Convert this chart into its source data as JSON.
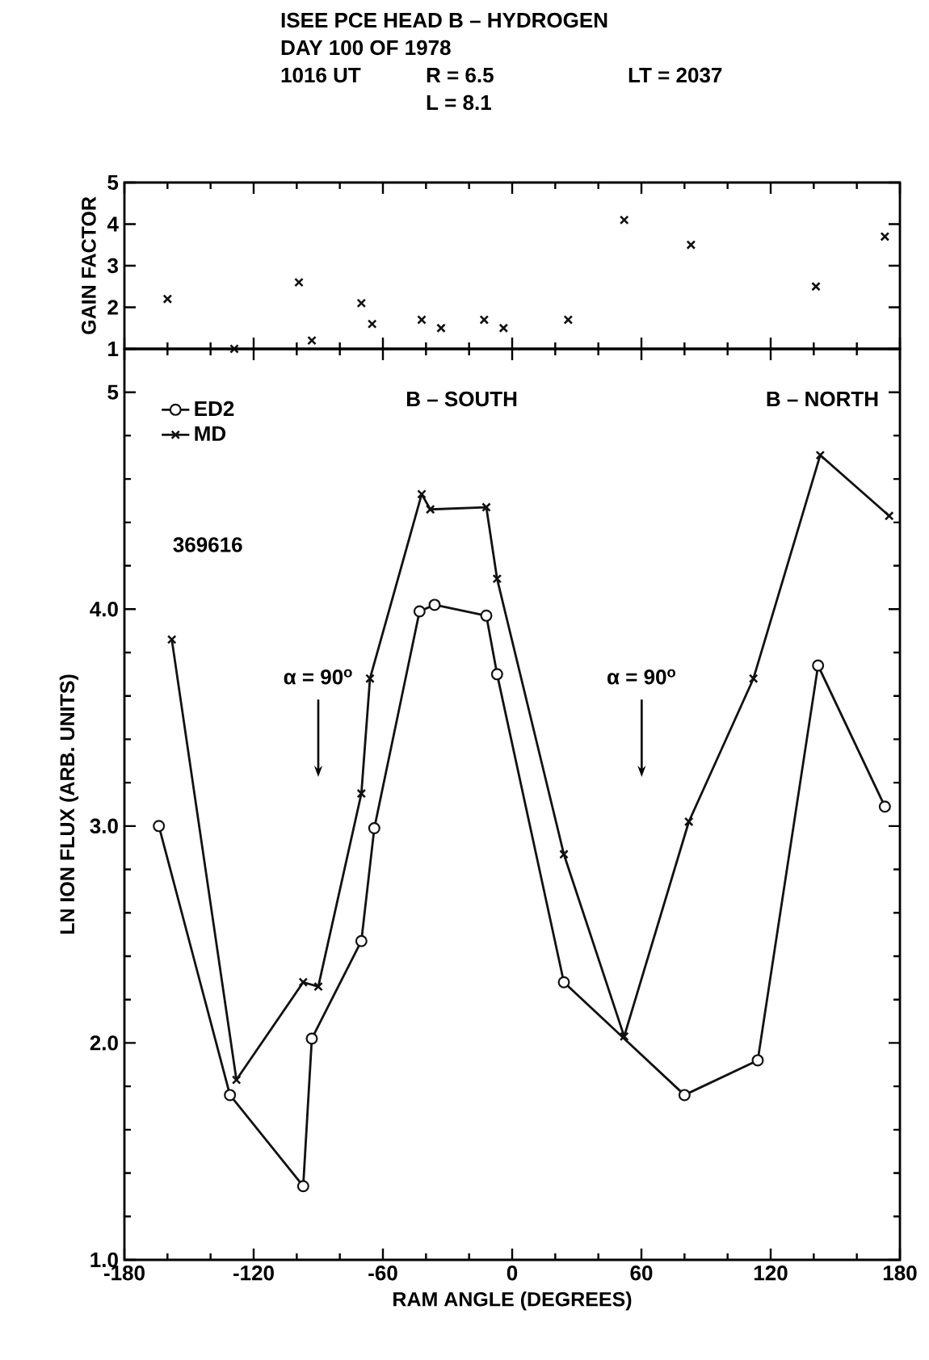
{
  "chart_data": [
    {
      "type": "scatter",
      "title": "ISEE PCE HEAD B – HYDROGEN",
      "annotations": [
        "DAY 100 OF 1978",
        "1016 UT",
        "R = 6.5",
        "LT = 2037",
        "L = 8.1"
      ],
      "ylabel": "GAIN FACTOR",
      "x": [
        -160,
        -129,
        -99,
        -93,
        -70,
        -65,
        -42,
        -33,
        -13,
        -4,
        26,
        52,
        83,
        141,
        173
      ],
      "values": [
        2.2,
        1.0,
        2.6,
        1.2,
        2.1,
        1.6,
        1.7,
        1.5,
        1.7,
        1.5,
        1.7,
        4.1,
        3.5,
        2.5,
        3.7
      ],
      "color": "#111111",
      "marker": "cross",
      "xlim": [
        -180,
        180
      ],
      "xticks": [
        -180,
        -120,
        -60,
        0,
        60,
        120,
        180
      ],
      "ylim": [
        1,
        5
      ],
      "yticks": [
        1,
        2,
        3,
        4,
        5
      ],
      "tick_labels": "y"
    },
    {
      "type": "line",
      "xlabel": "RAM ANGLE (DEGREES)",
      "ylabel": "LN ION FLUX (ARB. UNITS)",
      "legend": "top left",
      "annotations": [
        "369616",
        "B – SOUTH",
        "B – NORTH",
        "α = 90$^{o}$",
        "α = 90$^{o}$"
      ],
      "series": [
        {
          "name": "ED2",
          "color": "#111111",
          "marker": "circle",
          "x": [
            -164,
            -131,
            -97,
            -93,
            -70,
            -64,
            -43,
            -36,
            -12,
            -7,
            24,
            80,
            114,
            142,
            173
          ],
          "values": [
            3.0,
            1.76,
            1.34,
            2.02,
            2.47,
            2.99,
            3.99,
            4.02,
            3.97,
            3.7,
            2.28,
            1.76,
            1.92,
            3.74,
            3.09
          ]
        },
        {
          "name": "MD",
          "color": "#111111",
          "marker": "cross",
          "x": [
            -158,
            -128,
            -97,
            -90,
            -70,
            -66,
            -42,
            -38,
            -12,
            -7,
            24,
            52,
            82,
            112,
            143,
            175
          ],
          "values": [
            3.86,
            1.83,
            2.28,
            2.26,
            3.15,
            3.68,
            4.53,
            4.46,
            4.47,
            4.14,
            2.87,
            2.03,
            3.02,
            3.68,
            4.71,
            4.43
          ]
        }
      ],
      "xlim": [
        -180,
        180
      ],
      "xticks": [
        -180,
        -120,
        -60,
        0,
        60,
        120,
        180
      ],
      "ylim": [
        1,
        5.2
      ],
      "yticks": [
        {
          "value": 1,
          "label": "1.0"
        },
        {
          "value": 2,
          "label": "2.0"
        },
        {
          "value": 3,
          "label": "3.0"
        },
        {
          "value": 4,
          "label": "4.0"
        },
        5
      ]
    }
  ]
}
